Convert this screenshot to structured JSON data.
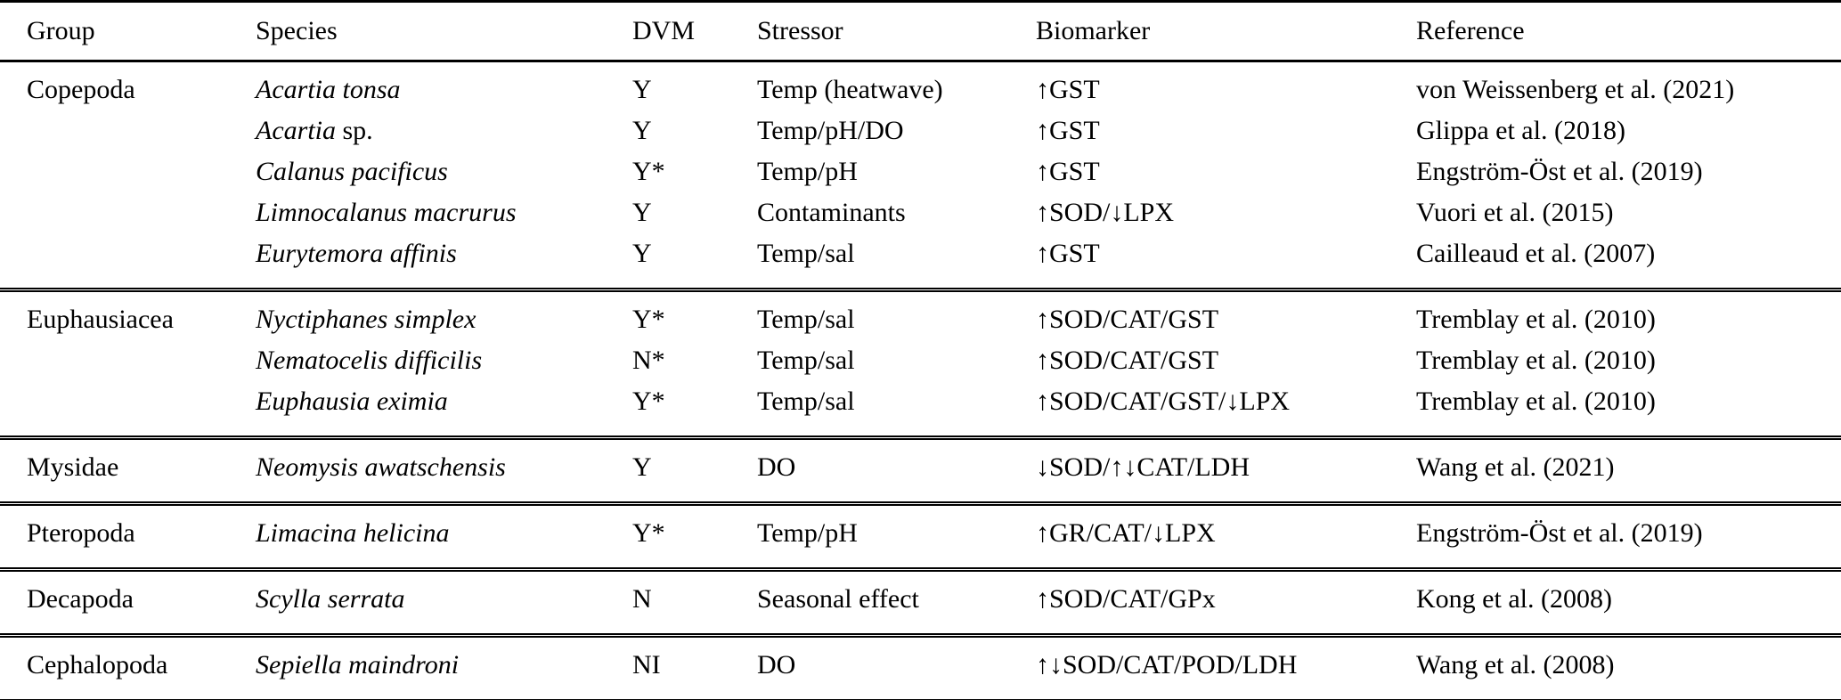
{
  "colors": {
    "text": "#000000",
    "background": "#ffffff",
    "rule": "#000000"
  },
  "table": {
    "columns": [
      "Group",
      "Species",
      "DVM",
      "Stressor",
      "Biomarker",
      "Reference"
    ],
    "sections": [
      {
        "group": "Copepoda",
        "rows": [
          {
            "species_italic": "Acartia tonsa",
            "species_roman": "",
            "dvm": "Y",
            "stressor": "Temp (heatwave)",
            "biomarker": "↑GST",
            "reference": "von Weissenberg et al. (2021)"
          },
          {
            "species_italic": "Acartia",
            "species_roman": " sp.",
            "dvm": "Y",
            "stressor": "Temp/pH/DO",
            "biomarker": "↑GST",
            "reference": "Glippa et al. (2018)"
          },
          {
            "species_italic": "Calanus pacificus",
            "species_roman": "",
            "dvm": "Y*",
            "stressor": "Temp/pH",
            "biomarker": "↑GST",
            "reference": "Engström-Öst et al. (2019)"
          },
          {
            "species_italic": "Limnocalanus macrurus",
            "species_roman": "",
            "dvm": "Y",
            "stressor": "Contaminants",
            "biomarker": "↑SOD/↓LPX",
            "reference": "Vuori et al. (2015)"
          },
          {
            "species_italic": "Eurytemora affinis",
            "species_roman": "",
            "dvm": "Y",
            "stressor": "Temp/sal",
            "biomarker": "↑GST",
            "reference": "Cailleaud et al. (2007)"
          }
        ]
      },
      {
        "group": "Euphausiacea",
        "rows": [
          {
            "species_italic": "Nyctiphanes simplex",
            "species_roman": "",
            "dvm": "Y*",
            "stressor": "Temp/sal",
            "biomarker": "↑SOD/CAT/GST",
            "reference": "Tremblay et al. (2010)"
          },
          {
            "species_italic": "Nematocelis difficilis",
            "species_roman": "",
            "dvm": "N*",
            "stressor": "Temp/sal",
            "biomarker": "↑SOD/CAT/GST",
            "reference": "Tremblay et al. (2010)"
          },
          {
            "species_italic": "Euphausia eximia",
            "species_roman": "",
            "dvm": "Y*",
            "stressor": "Temp/sal",
            "biomarker": "↑SOD/CAT/GST/↓LPX",
            "reference": "Tremblay et al. (2010)"
          }
        ]
      },
      {
        "group": "Mysidae",
        "rows": [
          {
            "species_italic": "Neomysis awatschensis",
            "species_roman": "",
            "dvm": "Y",
            "stressor": "DO",
            "biomarker": "↓SOD/↑↓CAT/LDH",
            "reference": "Wang et al. (2021)"
          }
        ]
      },
      {
        "group": "Pteropoda",
        "rows": [
          {
            "species_italic": "Limacina helicina",
            "species_roman": "",
            "dvm": "Y*",
            "stressor": "Temp/pH",
            "biomarker": "↑GR/CAT/↓LPX",
            "reference": "Engström-Öst et al. (2019)"
          }
        ]
      },
      {
        "group": "Decapoda",
        "rows": [
          {
            "species_italic": "Scylla serrata",
            "species_roman": "",
            "dvm": "N",
            "stressor": "Seasonal effect",
            "biomarker": "↑SOD/CAT/GPx",
            "reference": "Kong et al. (2008)"
          }
        ]
      },
      {
        "group": "Cephalopoda",
        "rows": [
          {
            "species_italic": "Sepiella maindroni",
            "species_roman": "",
            "dvm": "NI",
            "stressor": "DO",
            "biomarker": "↑↓SOD/CAT/POD/LDH",
            "reference": "Wang et al. (2008)"
          }
        ]
      }
    ]
  }
}
